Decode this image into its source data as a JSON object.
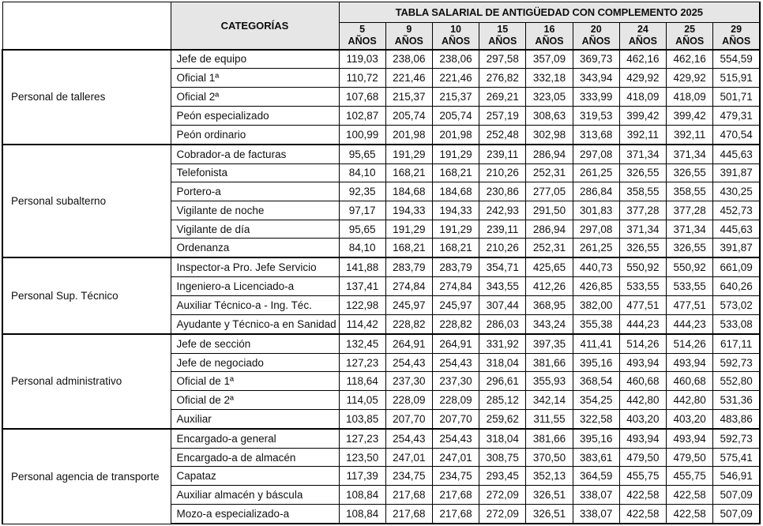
{
  "table": {
    "title": "TABLA SALARIAL DE ANTIGÜEDAD CON COMPLEMENTO 2025",
    "category_header": "CATEGORÍAS",
    "year_unit": "AÑOS",
    "years": [
      "5",
      "9",
      "10",
      "15",
      "16",
      "20",
      "24",
      "25",
      "29"
    ],
    "groups": [
      {
        "label": "Personal de talleres",
        "rows": [
          {
            "category": "Jefe de equipo",
            "values": [
              "119,03",
              "238,06",
              "238,06",
              "297,58",
              "357,09",
              "369,73",
              "462,16",
              "462,16",
              "554,59"
            ]
          },
          {
            "category": "Oficial 1ª",
            "values": [
              "110,72",
              "221,46",
              "221,46",
              "276,82",
              "332,18",
              "343,94",
              "429,92",
              "429,92",
              "515,91"
            ]
          },
          {
            "category": "Oficial 2ª",
            "values": [
              "107,68",
              "215,37",
              "215,37",
              "269,21",
              "323,05",
              "333,99",
              "418,09",
              "418,09",
              "501,71"
            ]
          },
          {
            "category": "Peón especializado",
            "values": [
              "102,87",
              "205,74",
              "205,74",
              "257,19",
              "308,63",
              "319,53",
              "399,42",
              "399,42",
              "479,31"
            ]
          },
          {
            "category": "Peón ordinario",
            "values": [
              "100,99",
              "201,98",
              "201,98",
              "252,48",
              "302,98",
              "313,68",
              "392,11",
              "392,11",
              "470,54"
            ]
          }
        ]
      },
      {
        "label": "Personal subalterno",
        "rows": [
          {
            "category": "Cobrador-a de facturas",
            "values": [
              "95,65",
              "191,29",
              "191,29",
              "239,11",
              "286,94",
              "297,08",
              "371,34",
              "371,34",
              "445,63"
            ]
          },
          {
            "category": "Telefonista",
            "values": [
              "84,10",
              "168,21",
              "168,21",
              "210,26",
              "252,31",
              "261,25",
              "326,55",
              "326,55",
              "391,87"
            ]
          },
          {
            "category": "Portero-a",
            "values": [
              "92,35",
              "184,68",
              "184,68",
              "230,86",
              "277,05",
              "286,84",
              "358,55",
              "358,55",
              "430,25"
            ]
          },
          {
            "category": "Vigilante de noche",
            "values": [
              "97,17",
              "194,33",
              "194,33",
              "242,93",
              "291,50",
              "301,83",
              "377,28",
              "377,28",
              "452,73"
            ]
          },
          {
            "category": "Vigilante de día",
            "values": [
              "95,65",
              "191,29",
              "191,29",
              "239,11",
              "286,94",
              "297,08",
              "371,34",
              "371,34",
              "445,63"
            ]
          },
          {
            "category": "Ordenanza",
            "values": [
              "84,10",
              "168,21",
              "168,21",
              "210,26",
              "252,31",
              "261,25",
              "326,55",
              "326,55",
              "391,87"
            ]
          }
        ]
      },
      {
        "label": "Personal Sup. Técnico",
        "rows": [
          {
            "category": "Inspector-a Pro. Jefe Servicio",
            "values": [
              "141,88",
              "283,79",
              "283,79",
              "354,71",
              "425,65",
              "440,73",
              "550,92",
              "550,92",
              "661,09"
            ]
          },
          {
            "category": "Ingeniero-a Licenciado-a",
            "values": [
              "137,41",
              "274,84",
              "274,84",
              "343,55",
              "412,26",
              "426,85",
              "533,55",
              "533,55",
              "640,26"
            ]
          },
          {
            "category": "Auxiliar Técnico-a - Ing. Téc.",
            "values": [
              "122,98",
              "245,97",
              "245,97",
              "307,44",
              "368,95",
              "382,00",
              "477,51",
              "477,51",
              "573,02"
            ]
          },
          {
            "category": "Ayudante y Técnico-a en Sanidad",
            "values": [
              "114,42",
              "228,82",
              "228,82",
              "286,03",
              "343,24",
              "355,38",
              "444,23",
              "444,23",
              "533,08"
            ]
          }
        ]
      },
      {
        "label": "Personal administrativo",
        "rows": [
          {
            "category": "Jefe de sección",
            "values": [
              "132,45",
              "264,91",
              "264,91",
              "331,92",
              "397,35",
              "411,41",
              "514,26",
              "514,26",
              "617,11"
            ]
          },
          {
            "category": "Jefe de negociado",
            "values": [
              "127,23",
              "254,43",
              "254,43",
              "318,04",
              "381,66",
              "395,16",
              "493,94",
              "493,94",
              "592,73"
            ]
          },
          {
            "category": "Oficial de 1ª",
            "values": [
              "118,64",
              "237,30",
              "237,30",
              "296,61",
              "355,93",
              "368,54",
              "460,68",
              "460,68",
              "552,80"
            ]
          },
          {
            "category": "Oficial de 2ª",
            "values": [
              "114,05",
              "228,09",
              "228,09",
              "285,12",
              "342,14",
              "354,25",
              "442,80",
              "442,80",
              "531,36"
            ]
          },
          {
            "category": "Auxiliar",
            "values": [
              "103,85",
              "207,70",
              "207,70",
              "259,62",
              "311,55",
              "322,58",
              "403,20",
              "403,20",
              "483,86"
            ]
          }
        ]
      },
      {
        "label": "Personal agencia de transporte",
        "rows": [
          {
            "category": "Encargado-a general",
            "values": [
              "127,23",
              "254,43",
              "254,43",
              "318,04",
              "381,66",
              "395,16",
              "493,94",
              "493,94",
              "592,73"
            ]
          },
          {
            "category": "Encargado-a de almacén",
            "values": [
              "123,50",
              "247,01",
              "247,01",
              "308,75",
              "370,50",
              "383,61",
              "479,50",
              "479,50",
              "575,41"
            ]
          },
          {
            "category": "Capataz",
            "values": [
              "117,39",
              "234,75",
              "234,75",
              "293,45",
              "352,13",
              "364,59",
              "455,75",
              "455,75",
              "546,91"
            ]
          },
          {
            "category": "Auxiliar almacén y báscula",
            "values": [
              "108,84",
              "217,68",
              "217,68",
              "272,09",
              "326,51",
              "338,07",
              "422,58",
              "422,58",
              "507,09"
            ]
          },
          {
            "category": "Mozo-a especializado-a",
            "values": [
              "108,84",
              "217,68",
              "217,68",
              "272,09",
              "326,51",
              "338,07",
              "422,58",
              "422,58",
              "507,09"
            ]
          }
        ]
      }
    ],
    "colors": {
      "header_bg": "#e6e6e6",
      "border": "#000000",
      "text": "#101010"
    }
  }
}
